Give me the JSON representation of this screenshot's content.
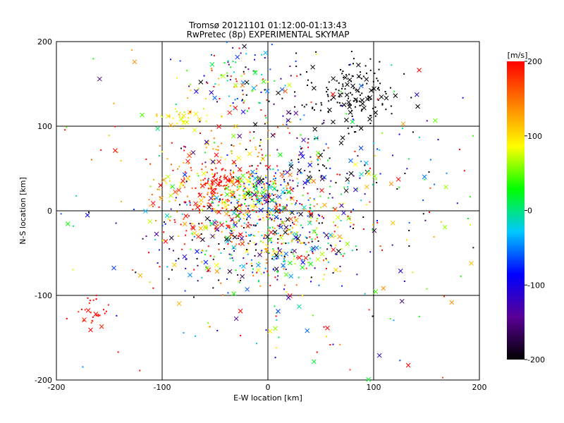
{
  "chart_data": {
    "type": "scatter",
    "title": "Tromsø 20121101 01:12:00-01:13:43",
    "subtitle": "RwPretec (8p) EXPERIMENTAL SKYMAP",
    "xlabel": "E-W location [km]",
    "ylabel": "N-S location [km]",
    "xlim": [
      -200,
      200
    ],
    "ylim": [
      -200,
      200
    ],
    "xticks": [
      "-200",
      "-100",
      "0",
      "100",
      "200"
    ],
    "yticks": [
      "-200",
      "-100",
      "0",
      "100",
      "200"
    ],
    "grid": true,
    "colorbar": {
      "label": "[m/s]",
      "range": [
        -200,
        200
      ],
      "ticks": [
        "-200",
        "-100",
        "0",
        "100",
        "200"
      ],
      "colormap": [
        "#000000",
        "#5a0096",
        "#0000ff",
        "#00c8ff",
        "#00ff00",
        "#ffff00",
        "#ff8000",
        "#ff0000"
      ]
    },
    "marker_types": [
      "dot",
      "cross"
    ],
    "clusters": [
      {
        "cx": -40,
        "cy": 20,
        "sx": 35,
        "sy": 35,
        "vmean": 160,
        "vsd": 50,
        "n": 320
      },
      {
        "cx": -45,
        "cy": 35,
        "sx": 10,
        "sy": 8,
        "vmean": 195,
        "vsd": 10,
        "n": 60
      },
      {
        "cx": -12,
        "cy": 25,
        "sx": 12,
        "sy": 10,
        "vmean": 70,
        "vsd": 60,
        "n": 80
      },
      {
        "cx": -2,
        "cy": 25,
        "sx": 10,
        "sy": 15,
        "vmean": -100,
        "vsd": 60,
        "n": 60
      },
      {
        "cx": 15,
        "cy": -25,
        "sx": 35,
        "sy": 35,
        "vmean": 0,
        "vsd": 140,
        "n": 300
      },
      {
        "cx": -25,
        "cy": -35,
        "sx": 45,
        "sy": 30,
        "vmean": -50,
        "vsd": 150,
        "n": 200
      },
      {
        "cx": 75,
        "cy": 135,
        "sx": 25,
        "sy": 20,
        "vmean": -200,
        "vsd": 5,
        "n": 160
      },
      {
        "cx": -25,
        "cy": 155,
        "sx": 30,
        "sy": 22,
        "vmean": 0,
        "vsd": 130,
        "n": 110
      },
      {
        "cx": -80,
        "cy": 110,
        "sx": 15,
        "sy": 8,
        "vmean": 100,
        "vsd": 25,
        "n": 40
      },
      {
        "cx": 40,
        "cy": 60,
        "sx": 60,
        "sy": 40,
        "vmean": -120,
        "vsd": 120,
        "n": 150
      },
      {
        "cx": -170,
        "cy": -120,
        "sx": 10,
        "sy": 10,
        "vmean": 200,
        "vsd": 15,
        "n": 30
      },
      {
        "cx": 0,
        "cy": 0,
        "sx": 120,
        "sy": 110,
        "vmean": 60,
        "vsd": 160,
        "n": 320
      }
    ]
  }
}
